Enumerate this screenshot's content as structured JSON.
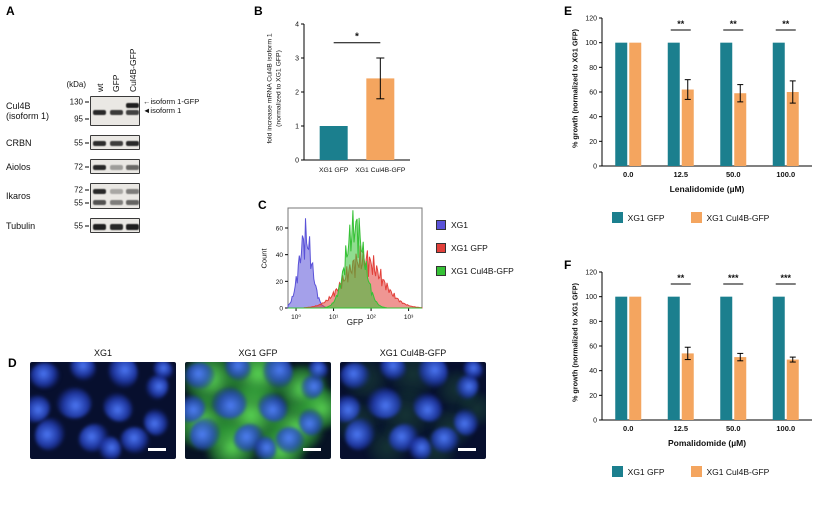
{
  "colors": {
    "teal": "#1b7f8e",
    "orange": "#f4a55f",
    "flow_blue": "#5a52d8",
    "flow_red": "#e2403a",
    "flow_green": "#35c135",
    "band": "#141414",
    "blot_bg": "#eae8e4"
  },
  "panel_a": {
    "label": "A",
    "kda_label": "(kDa)",
    "lane_labels": [
      "wt",
      "GFP",
      "Cul4B-GFP"
    ],
    "annotations": [
      {
        "arrow": "←",
        "text": "isoform 1-GFP"
      },
      {
        "arrow": "◄",
        "text": "isoform 1"
      }
    ],
    "rows": [
      {
        "label_lines": [
          "Cul4B",
          "(isoform 1)"
        ],
        "height": 30,
        "markers": [
          {
            "text": "130",
            "y": 0.2
          },
          {
            "text": "95",
            "y": 0.75
          }
        ],
        "bands": [
          {
            "y": 0.28,
            "h": 5,
            "lanes": [
              0,
              0,
              0.95
            ]
          },
          {
            "y": 0.52,
            "h": 5,
            "lanes": [
              0.9,
              0.82,
              0.78
            ]
          }
        ]
      },
      {
        "label_lines": [
          "CRBN"
        ],
        "height": 15,
        "markers": [
          {
            "text": "55",
            "y": 0.5
          }
        ],
        "bands": [
          {
            "y": 0.5,
            "h": 5,
            "lanes": [
              0.88,
              0.8,
              0.9
            ]
          }
        ]
      },
      {
        "label_lines": [
          "Aiolos"
        ],
        "height": 15,
        "markers": [
          {
            "text": "72",
            "y": 0.5
          }
        ],
        "bands": [
          {
            "y": 0.5,
            "h": 5,
            "lanes": [
              0.9,
              0.35,
              0.6
            ]
          }
        ]
      },
      {
        "label_lines": [
          "Ikaros"
        ],
        "height": 26,
        "markers": [
          {
            "text": "72",
            "y": 0.25
          },
          {
            "text": "55",
            "y": 0.75
          }
        ],
        "bands": [
          {
            "y": 0.3,
            "h": 5,
            "lanes": [
              0.9,
              0.3,
              0.5
            ]
          },
          {
            "y": 0.72,
            "h": 5,
            "lanes": [
              0.7,
              0.5,
              0.62
            ]
          }
        ]
      },
      {
        "label_lines": [
          "Tubulin"
        ],
        "height": 15,
        "markers": [
          {
            "text": "55",
            "y": 0.5
          }
        ],
        "bands": [
          {
            "y": 0.5,
            "h": 6,
            "lanes": [
              0.95,
              0.9,
              0.95
            ]
          }
        ]
      }
    ]
  },
  "panel_d": {
    "label": "D",
    "images": [
      {
        "title": "XG1",
        "style": "blue"
      },
      {
        "title": "XG1 GFP",
        "style": "green"
      },
      {
        "title": "XG1 Cul4B-GFP",
        "style": "blue_faint_green"
      }
    ]
  },
  "chart_data": [
    {
      "id": "B",
      "panel_label": "B",
      "type": "bar",
      "ylabel_lines": [
        "fold increase mRNA Cul4B isoform 1",
        "(normalized to XG1 GFP)"
      ],
      "categories": [
        "XG1 GFP",
        "XG1 Cul4B-GFP"
      ],
      "values": [
        1.0,
        2.4
      ],
      "errors": [
        0,
        0.6
      ],
      "bar_colors": [
        "teal",
        "orange"
      ],
      "ylim": [
        0,
        4
      ],
      "yticks": [
        0,
        1,
        2,
        3,
        4
      ],
      "significance": [
        {
          "pair": [
            0,
            1
          ],
          "label": "*",
          "y": 3.45
        }
      ]
    },
    {
      "id": "C",
      "panel_label": "C",
      "type": "histogram",
      "xlabel": "GFP",
      "ylabel": "Count",
      "ymax": 75,
      "yticks": [
        0,
        20,
        40,
        60
      ],
      "xtick_labels": [
        "10⁰",
        "10¹",
        "10²",
        "10³"
      ],
      "series": [
        {
          "name": "XG1",
          "color": "flow_blue",
          "center": 0.13,
          "width": 0.05,
          "height": 52
        },
        {
          "name": "XG1 GFP",
          "color": "flow_red",
          "center": 0.56,
          "width": 0.14,
          "height": 36
        },
        {
          "name": "XG1 Cul4B-GFP",
          "color": "flow_green",
          "center": 0.5,
          "width": 0.07,
          "height": 60
        }
      ]
    },
    {
      "id": "E",
      "panel_label": "E",
      "type": "grouped-bar",
      "xlabel": "Lenalidomide (µM)",
      "ylabel": "% growth (normalized to XG1 GFP)",
      "categories": [
        "0.0",
        "12.5",
        "50.0",
        "100.0"
      ],
      "ylim": [
        0,
        120
      ],
      "yticks": [
        0,
        20,
        40,
        60,
        80,
        100,
        120
      ],
      "series": [
        {
          "name": "XG1 GFP",
          "color": "teal",
          "values": [
            100,
            100,
            100,
            100
          ],
          "errors": [
            0,
            0,
            0,
            0
          ]
        },
        {
          "name": "XG1 Cul4B-GFP",
          "color": "orange",
          "values": [
            100,
            62,
            59,
            60
          ],
          "errors": [
            0,
            8,
            7,
            9
          ]
        }
      ],
      "significance": [
        {
          "category": 1,
          "label": "**"
        },
        {
          "category": 2,
          "label": "**"
        },
        {
          "category": 3,
          "label": "**"
        }
      ]
    },
    {
      "id": "F",
      "panel_label": "F",
      "type": "grouped-bar",
      "xlabel": "Pomalidomide (µM)",
      "ylabel": "% growth (normalized to XG1 GFP)",
      "categories": [
        "0.0",
        "12.5",
        "50.0",
        "100.0"
      ],
      "ylim": [
        0,
        120
      ],
      "yticks": [
        0,
        20,
        40,
        60,
        80,
        100,
        120
      ],
      "series": [
        {
          "name": "XG1 GFP",
          "color": "teal",
          "values": [
            100,
            100,
            100,
            100
          ],
          "errors": [
            0,
            0,
            0,
            0
          ]
        },
        {
          "name": "XG1 Cul4B-GFP",
          "color": "orange",
          "values": [
            100,
            54,
            51,
            49
          ],
          "errors": [
            0,
            5,
            3,
            2
          ]
        }
      ],
      "significance": [
        {
          "category": 1,
          "label": "**"
        },
        {
          "category": 2,
          "label": "***"
        },
        {
          "category": 3,
          "label": "***"
        }
      ]
    }
  ]
}
